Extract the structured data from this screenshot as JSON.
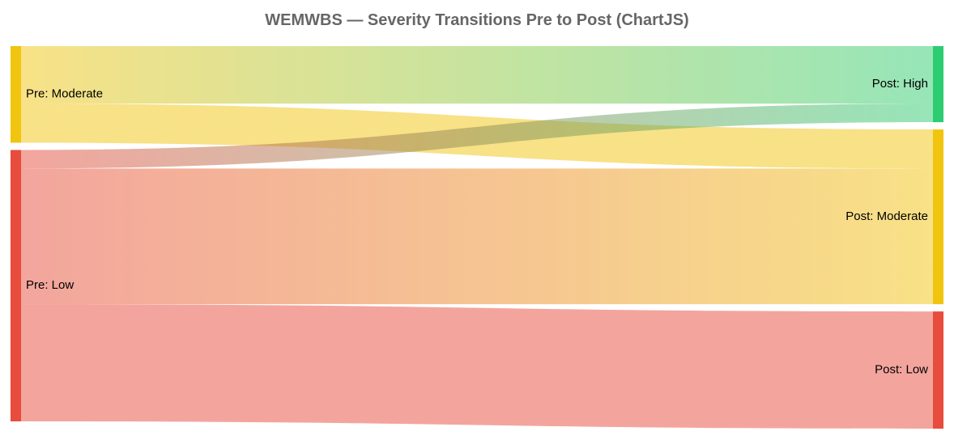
{
  "chart_data": {
    "type": "sankey",
    "title": "WEMWBS — Severity Transitions Pre to Post (ChartJS)",
    "nodes": [
      {
        "id": "pre_moderate",
        "label": "Pre: Moderate",
        "column": "left",
        "color": "#f1c40f"
      },
      {
        "id": "pre_low",
        "label": "Pre: Low",
        "column": "left",
        "color": "#e74c3c"
      },
      {
        "id": "post_high",
        "label": "Post: High",
        "column": "right",
        "color": "#2ecc71"
      },
      {
        "id": "post_moderate",
        "label": "Post: Moderate",
        "column": "right",
        "color": "#f1c40f"
      },
      {
        "id": "post_low",
        "label": "Post: Low",
        "column": "right",
        "color": "#e74c3c"
      }
    ],
    "flows": [
      {
        "from": "pre_moderate",
        "to": "post_high",
        "value": 14
      },
      {
        "from": "pre_moderate",
        "to": "post_moderate",
        "value": 9.5
      },
      {
        "from": "pre_low",
        "to": "post_high",
        "value": 4.5
      },
      {
        "from": "pre_low",
        "to": "post_moderate",
        "value": 33
      },
      {
        "from": "pre_low",
        "to": "post_low",
        "value": 28.5
      }
    ],
    "left_order": [
      "pre_moderate",
      "pre_low"
    ],
    "right_order": [
      "post_high",
      "post_moderate",
      "post_low"
    ]
  }
}
